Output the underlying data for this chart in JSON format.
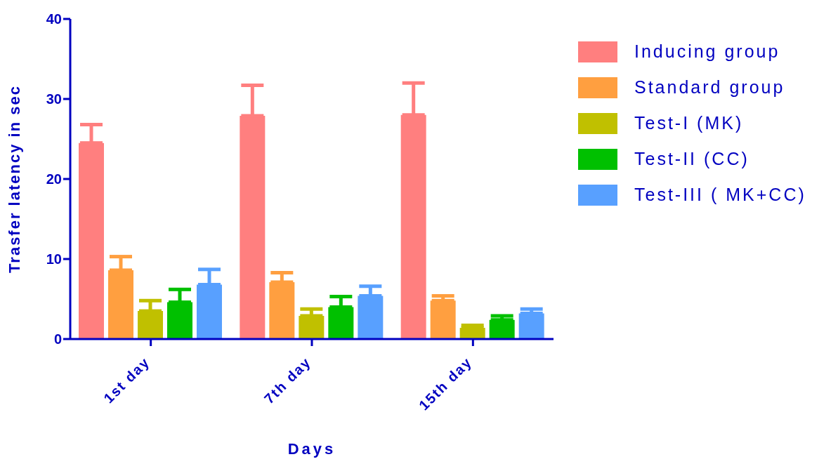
{
  "chart_data": {
    "type": "bar",
    "xlabel": "Days",
    "ylabel": "Trasfer latency in sec",
    "categories": [
      "1st day",
      "7th day",
      "15th day"
    ],
    "series": [
      {
        "name": "Inducing group",
        "color": "#ff7f7f",
        "values": [
          24.5,
          27.9,
          28.0
        ],
        "errors": [
          [
            24.5,
            26.8
          ],
          [
            27.9,
            31.7
          ],
          [
            28.0,
            32.0
          ]
        ]
      },
      {
        "name": "Standard group",
        "color": "#ff9f40",
        "values": [
          8.6,
          7.1,
          4.8
        ],
        "errors": [
          [
            8.6,
            10.3
          ],
          [
            7.1,
            8.3
          ],
          [
            4.8,
            5.4
          ]
        ]
      },
      {
        "name": "Test-I (MK)",
        "color": "#c0c000",
        "values": [
          3.5,
          2.9,
          1.4
        ],
        "errors": [
          [
            3.5,
            4.8
          ],
          [
            2.9,
            3.75
          ],
          [
            1.4,
            1.7
          ]
        ]
      },
      {
        "name": "Test-II (CC)",
        "color": "#00c000",
        "values": [
          4.6,
          4.0,
          2.4
        ],
        "errors": [
          [
            4.6,
            6.2
          ],
          [
            4.0,
            5.3
          ],
          [
            2.4,
            2.9
          ]
        ]
      },
      {
        "name": "Test-III ( MK+CC)",
        "color": "#58a0ff",
        "values": [
          6.8,
          5.4,
          3.2
        ],
        "errors": [
          [
            6.8,
            8.7
          ],
          [
            5.4,
            6.6
          ],
          [
            3.2,
            3.75
          ]
        ]
      }
    ],
    "ylim": [
      0,
      40
    ],
    "yticks": [
      0,
      10,
      20,
      30,
      40
    ],
    "grid": false,
    "legend": "top right"
  }
}
